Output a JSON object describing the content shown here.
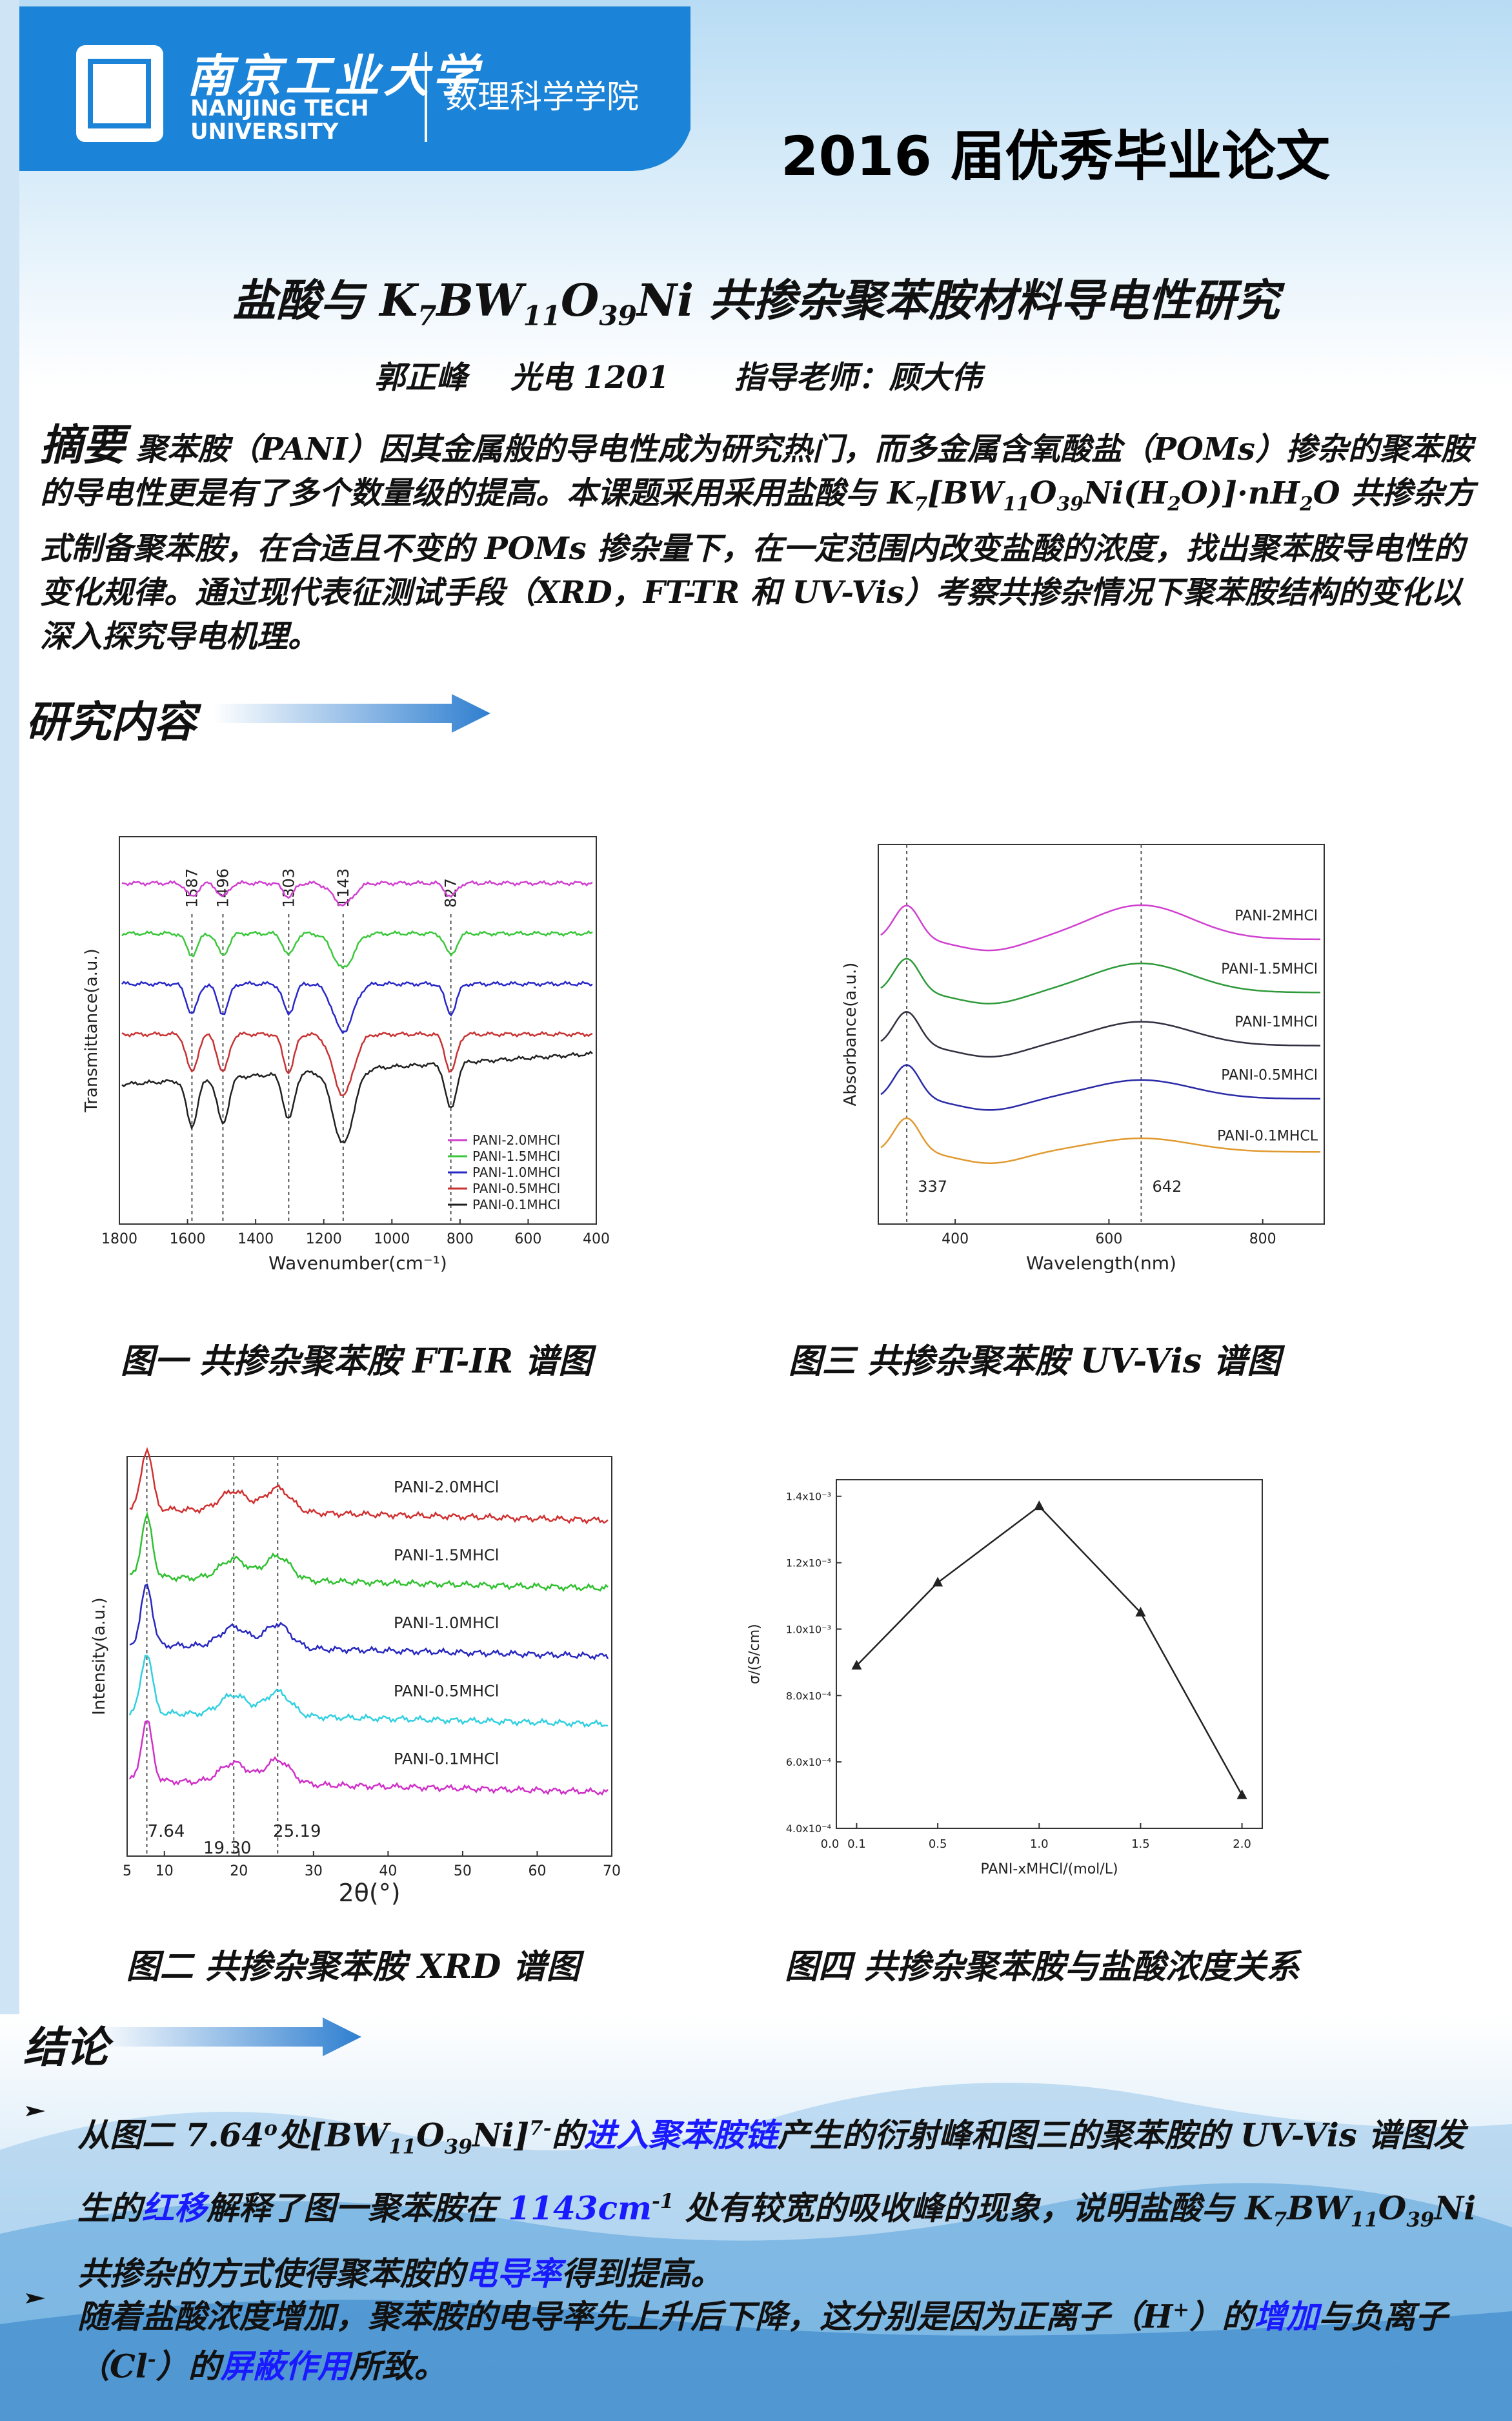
{
  "header": {
    "university_cn": "南京工业大学",
    "university_en_1": "NANJING TECH",
    "university_en_2": "UNIVERSITY",
    "school": "数理科学学院",
    "banner": "2016 届优秀毕业论文"
  },
  "title": [
    {
      "text": "盐酸与 K"
    },
    {
      "text": "7",
      "style": "sub"
    },
    {
      "text": "BW"
    },
    {
      "text": "11",
      "style": "sub"
    },
    {
      "text": "O"
    },
    {
      "text": "39",
      "style": "sub"
    },
    {
      "text": "Ni 共掺杂聚苯胺材料导电性研究"
    }
  ],
  "byline": {
    "author": "郭正峰",
    "class": "光电 1201",
    "advisor": "指导老师：顾大伟"
  },
  "abstract": {
    "label": "摘要",
    "runs": [
      {
        "text": "聚苯胺（PANI）因其金属般的导电性成为研究热门，而多金属含氧酸盐（POMs）掺杂的聚苯胺的导电性更是有了多个数量级的提高。本课题采用采用盐酸与 K"
      },
      {
        "text": "7",
        "style": "sub"
      },
      {
        "text": "[BW"
      },
      {
        "text": "11",
        "style": "sub"
      },
      {
        "text": "O"
      },
      {
        "text": "39",
        "style": "sub"
      },
      {
        "text": "Ni(H"
      },
      {
        "text": "2",
        "style": "sub"
      },
      {
        "text": "O)]·nH"
      },
      {
        "text": "2",
        "style": "sub"
      },
      {
        "text": "O 共掺杂方式制备聚苯胺，在合适且不变的 POMs 掺杂量下，在一定范围内改变盐酸的浓度，找出聚苯胺导电性的变化规律。通过现代表征测试手段（XRD，FT-TR 和 UV-Vis）考察共掺杂情况下聚苯胺结构的变化以深入探究导电机理。"
      }
    ]
  },
  "section_research": "研究内容",
  "figures": [
    {
      "caption": "图一 共掺杂聚苯胺 FT-IR 谱图",
      "chart": {
        "type": "spectrum",
        "x_label": "Wavenumber(cm⁻¹)",
        "y_label": "Transmittance(a.u.)",
        "xlim": [
          1800,
          400
        ],
        "xticks": [
          1800,
          1600,
          1400,
          1200,
          1000,
          800,
          600,
          400
        ],
        "peaks": [
          1587,
          1496,
          1303,
          1143,
          827
        ],
        "series": [
          {
            "name": "PANI-2.0MHCl",
            "color": "#d040d0"
          },
          {
            "name": "PANI-1.5MHCl",
            "color": "#3cc83c"
          },
          {
            "name": "PANI-1.0MHCl",
            "color": "#2828c8"
          },
          {
            "name": "PANI-0.5MHCl",
            "color": "#c83232"
          },
          {
            "name": "PANI-0.1MHCl",
            "color": "#202020"
          }
        ]
      }
    },
    {
      "caption": "图三 共掺杂聚苯胺 UV-Vis 谱图",
      "chart": {
        "type": "spectrum",
        "x_label": "Wavelength(nm)",
        "y_label": "Absorbance(a.u.)",
        "xlim": [
          300,
          880
        ],
        "xticks": [
          400,
          600,
          800
        ],
        "peaks": [
          337,
          642
        ],
        "series": [
          {
            "name": "PANI-2MHCl",
            "color": "#d040d0"
          },
          {
            "name": "PANI-1.5MHCl",
            "color": "#2e9a3a"
          },
          {
            "name": "PANI-1MHCl",
            "color": "#303040"
          },
          {
            "name": "PANI-0.5MHCl",
            "color": "#2a2aa8"
          },
          {
            "name": "PANI-0.1MHCL",
            "color": "#e09a30"
          }
        ]
      }
    },
    {
      "caption": "图二 共掺杂聚苯胺 XRD 谱图",
      "chart": {
        "type": "spectrum",
        "x_label": "2θ(°)",
        "y_label": "Intensity(a.u.)",
        "xlim": [
          5,
          70
        ],
        "xticks": [
          5,
          10,
          20,
          30,
          40,
          50,
          60,
          70
        ],
        "peaks": [
          7.64,
          {
            "value": 19.3,
            "label": "19.30"
          },
          25.19
        ],
        "series": [
          {
            "name": "PANI-2.0MHCl",
            "color": "#d03030"
          },
          {
            "name": "PANI-1.5MHCl",
            "color": "#30c030"
          },
          {
            "name": "PANI-1.0MHCl",
            "color": "#2828c0"
          },
          {
            "name": "PANI-0.5MHCl",
            "color": "#30d0e0"
          },
          {
            "name": "PANI-0.1MHCl",
            "color": "#d030c8"
          }
        ]
      }
    },
    {
      "caption": "图四 共掺杂聚苯胺与盐酸浓度关系",
      "chart": {
        "type": "line",
        "x_label": "PANI-xMHCl/(mol/L)",
        "y_label": "σ/(S/cm)",
        "xlim": [
          0,
          2.1
        ],
        "xticks": [
          {
            "value": 0,
            "label": "0.0"
          },
          0.1,
          0.5,
          {
            "value": 1,
            "label": "1.0"
          },
          1.5,
          {
            "value": 2,
            "label": "2.0"
          }
        ],
        "ylim": [
          0.0004,
          0.00145
        ],
        "yticks": [
          {
            "value": 0.0004,
            "label": "4.0x10⁻⁴"
          },
          {
            "value": 0.0006,
            "label": "6.0x10⁻⁴"
          },
          {
            "value": 0.0008,
            "label": "8.0x10⁻⁴"
          },
          {
            "value": 0.001,
            "label": "1.0x10⁻³"
          },
          {
            "value": 0.0012,
            "label": "1.2x10⁻³"
          },
          {
            "value": 0.0014,
            "label": "1.4x10⁻³"
          }
        ],
        "x": [
          0.1,
          0.5,
          1.0,
          1.5,
          2.0
        ],
        "values": [
          0.00089,
          0.00114,
          0.00137,
          0.00105,
          0.0005
        ],
        "color": "#222222"
      }
    }
  ],
  "section_conclusion": "结论",
  "conclusions": [
    [
      {
        "text": "从图二 7.64"
      },
      {
        "text": "o",
        "style": "sup"
      },
      {
        "text": "处[BW"
      },
      {
        "text": "11",
        "style": "sub"
      },
      {
        "text": "O"
      },
      {
        "text": "39",
        "style": "sub"
      },
      {
        "text": "Ni]"
      },
      {
        "text": "7-",
        "style": "sup"
      },
      {
        "text": "的"
      },
      {
        "text": "进入聚苯胺链",
        "style": "blue"
      },
      {
        "text": "产生的衍射峰和图三的聚苯胺的 UV-Vis 谱图发生的"
      },
      {
        "text": "红移",
        "style": "blue"
      },
      {
        "text": "解释了图一聚苯胺在 "
      },
      {
        "text": "1143cm",
        "style": "blue-bold"
      },
      {
        "text": "-1",
        "style": "sup"
      },
      {
        "text": " 处有较宽的吸收峰的现象，说明盐酸与 K"
      },
      {
        "text": "7",
        "style": "sub"
      },
      {
        "text": "BW"
      },
      {
        "text": "11",
        "style": "sub"
      },
      {
        "text": "O"
      },
      {
        "text": "39",
        "style": "sub"
      },
      {
        "text": "Ni 共掺杂的方式使得聚苯胺的"
      },
      {
        "text": "电导率",
        "style": "blue"
      },
      {
        "text": "得到提高。"
      }
    ],
    [
      {
        "text": "随着盐酸浓度增加，聚苯胺的电导率先上升后下降，这分别是因为正离子（H"
      },
      {
        "text": "+",
        "style": "sup"
      },
      {
        "text": "）的"
      },
      {
        "text": "增加",
        "style": "blue"
      },
      {
        "text": "与负离子（Cl"
      },
      {
        "text": "-",
        "style": "sup"
      },
      {
        "text": "）的"
      },
      {
        "text": "屏蔽作用",
        "style": "blue"
      },
      {
        "text": "所致。"
      }
    ]
  ]
}
